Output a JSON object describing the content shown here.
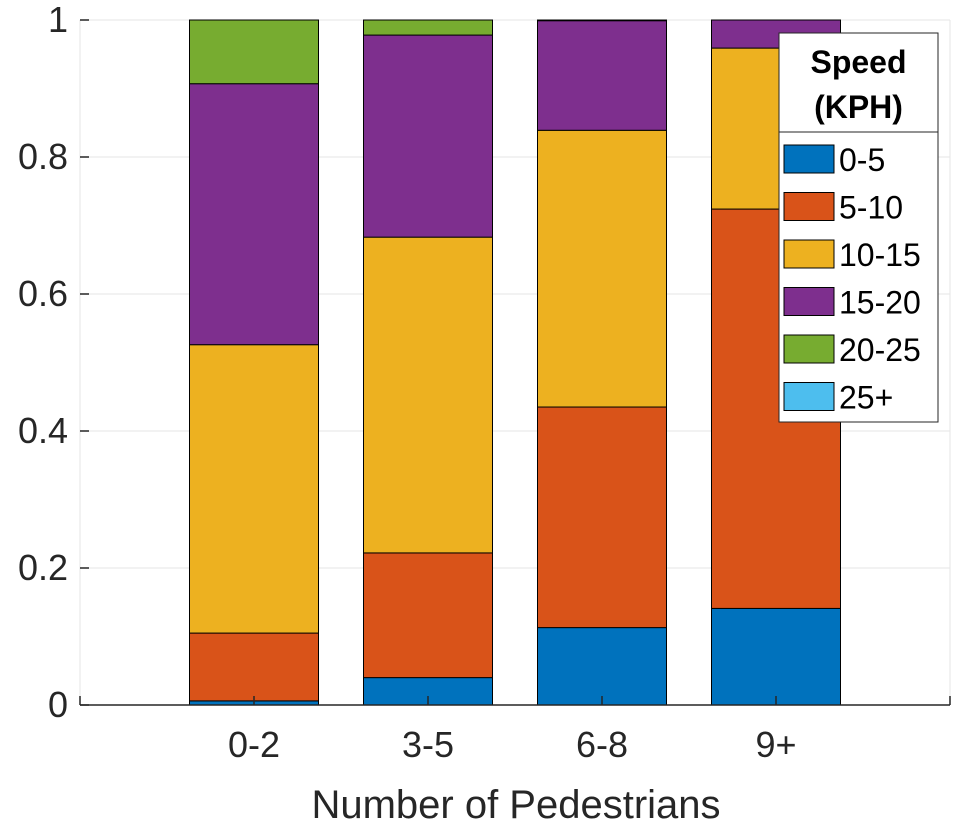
{
  "chart_data": {
    "type": "bar",
    "stacked": true,
    "title": "",
    "xlabel": "Number of Pedestrians",
    "ylabel": "",
    "ylim": [
      0,
      1
    ],
    "yticks": [
      "0",
      "0.2",
      "0.4",
      "0.6",
      "0.8",
      "1"
    ],
    "categories": [
      "0-2",
      "3-5",
      "6-8",
      "9+"
    ],
    "grid": true,
    "legend": {
      "title_line1": "Speed",
      "title_line2": "(KPH)",
      "placement": "top-right"
    },
    "series": [
      {
        "name": "0-5",
        "color": "#0072BD",
        "values": [
          0.006,
          0.04,
          0.113,
          0.141
        ]
      },
      {
        "name": "5-10",
        "color": "#D95319",
        "values": [
          0.099,
          0.182,
          0.322,
          0.583
        ]
      },
      {
        "name": "10-15",
        "color": "#EDB120",
        "values": [
          0.421,
          0.461,
          0.404,
          0.235
        ]
      },
      {
        "name": "15-20",
        "color": "#7E2F8E",
        "values": [
          0.381,
          0.295,
          0.16,
          0.041
        ]
      },
      {
        "name": "20-25",
        "color": "#77AC30",
        "values": [
          0.093,
          0.022,
          0.001,
          0.0
        ]
      },
      {
        "name": "25+",
        "color": "#4DBEEE",
        "values": [
          0.0,
          0.0,
          0.0,
          0.0
        ]
      }
    ]
  }
}
